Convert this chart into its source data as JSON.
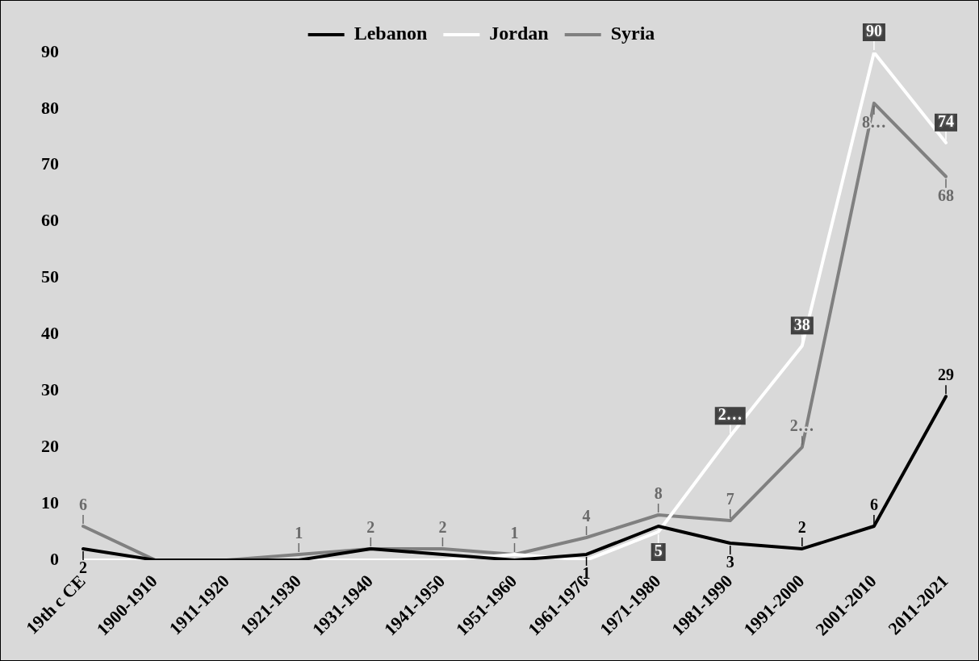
{
  "chart_data": {
    "type": "line",
    "categories": [
      "19th c CE",
      "1900-1910",
      "1911-1920",
      "1921-1930",
      "1931-1940",
      "1941-1950",
      "1951-1960",
      "1961-1970",
      "1971-1980",
      "1981-1990",
      "1991-2000",
      "2001-2010",
      "2011-2021"
    ],
    "series": [
      {
        "name": "Lebanon",
        "color": "#000000",
        "values": [
          2,
          0,
          0,
          0,
          2,
          1,
          0,
          1,
          6,
          3,
          2,
          6,
          29
        ],
        "value_labels": [
          "2",
          null,
          null,
          null,
          null,
          null,
          null,
          "1",
          null,
          "3",
          "2",
          "6",
          "29"
        ]
      },
      {
        "name": "Jordan",
        "color": "#ffffff",
        "values": [
          0,
          0,
          0,
          0,
          0,
          0,
          1,
          0,
          5,
          22,
          38,
          90,
          74
        ],
        "value_labels": [
          null,
          null,
          null,
          null,
          null,
          null,
          null,
          null,
          "5",
          "2…",
          "38",
          "90",
          "74"
        ]
      },
      {
        "name": "Syria",
        "color": "#808080",
        "values": [
          6,
          0,
          0,
          1,
          2,
          2,
          1,
          4,
          8,
          7,
          20,
          81,
          68
        ],
        "value_labels": [
          "6",
          null,
          null,
          "1",
          "2",
          "2",
          "1",
          "4",
          "8",
          "7",
          "2…",
          "8…",
          "68"
        ]
      }
    ],
    "ylim": [
      0,
      90
    ],
    "yticks": [
      0,
      10,
      20,
      30,
      40,
      50,
      60,
      70,
      80,
      90
    ],
    "grid": false,
    "legend": "top",
    "marker": "none",
    "line_style": "solid"
  }
}
